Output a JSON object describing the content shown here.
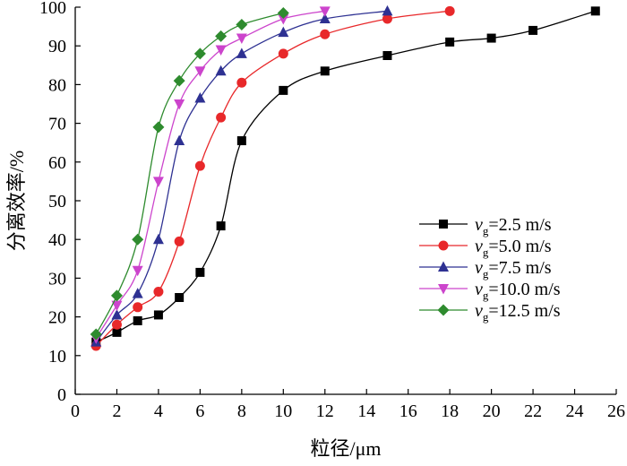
{
  "chart_data": {
    "type": "line",
    "title": "",
    "xlabel": "粒径/μm",
    "ylabel": "分离效率/%",
    "xlim": [
      0,
      26
    ],
    "ylim": [
      0,
      100
    ],
    "xticks": [
      0,
      2,
      4,
      6,
      8,
      10,
      12,
      14,
      16,
      18,
      20,
      22,
      24,
      26
    ],
    "yticks": [
      0,
      10,
      20,
      30,
      40,
      50,
      60,
      70,
      80,
      90,
      100
    ],
    "grid": false,
    "legend_position": "right",
    "legend_symbol": "v",
    "legend_subscript": "g",
    "series": [
      {
        "name": "=2.5 m/s",
        "color": "#000000",
        "marker": "square",
        "x": [
          1,
          2,
          3,
          4,
          5,
          6,
          7,
          8,
          10,
          12,
          15,
          18,
          20,
          22,
          25
        ],
        "y": [
          13.5,
          16,
          19,
          20.5,
          25,
          31.5,
          43.5,
          65.5,
          78.5,
          83.5,
          87.5,
          91,
          92,
          94,
          99
        ]
      },
      {
        "name": "=5.0 m/s",
        "color": "#e8282a",
        "marker": "circle",
        "x": [
          1,
          2,
          3,
          4,
          5,
          6,
          7,
          8,
          10,
          12,
          15,
          18
        ],
        "y": [
          12.5,
          18,
          22.5,
          26.5,
          39.5,
          59,
          71.5,
          80.5,
          88,
          93,
          97,
          99
        ]
      },
      {
        "name": "=7.5 m/s",
        "color": "#2e3192",
        "marker": "triangle-up",
        "x": [
          1,
          2,
          3,
          4,
          5,
          6,
          7,
          8,
          10,
          12,
          15
        ],
        "y": [
          13.5,
          20.5,
          26,
          40,
          65.5,
          76.5,
          83.5,
          88,
          93.5,
          97,
          99
        ]
      },
      {
        "name": "=10.0 m/s",
        "color": "#cc44cc",
        "marker": "triangle-down",
        "x": [
          1,
          2,
          3,
          4,
          5,
          6,
          7,
          8,
          10,
          12
        ],
        "y": [
          14.5,
          23,
          32,
          55,
          75,
          83.5,
          89,
          92,
          97,
          99
        ]
      },
      {
        "name": "=12.5 m/s",
        "color": "#2e8b2e",
        "marker": "diamond",
        "x": [
          1,
          2,
          3,
          4,
          5,
          6,
          7,
          8,
          10
        ],
        "y": [
          15.5,
          25.5,
          40,
          69,
          81,
          88,
          92.5,
          95.5,
          98.5
        ]
      }
    ]
  }
}
